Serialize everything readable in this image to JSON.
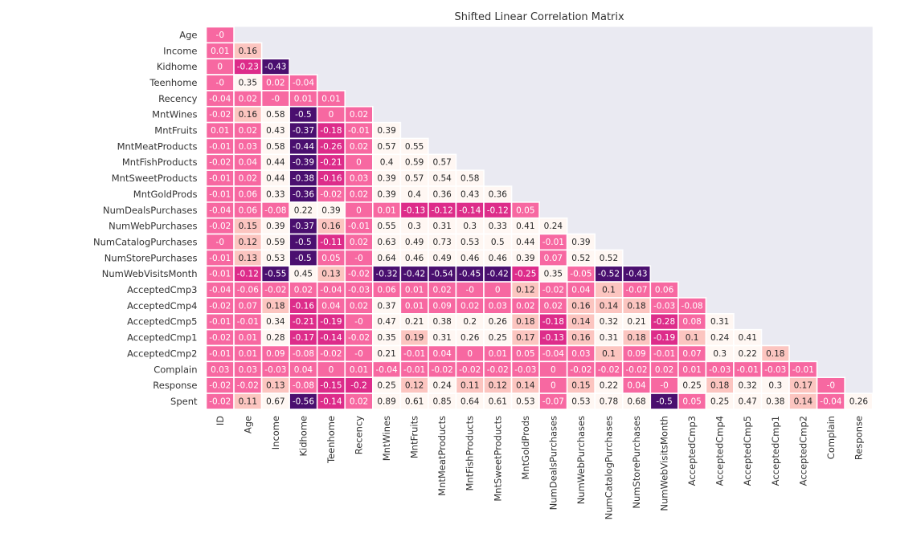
{
  "chart_data": {
    "type": "heatmap",
    "title": "Shifted Linear Correlation Matrix",
    "row_labels": [
      "Age",
      "Income",
      "Kidhome",
      "Teenhome",
      "Recency",
      "MntWines",
      "MntFruits",
      "MntMeatProducts",
      "MntFishProducts",
      "MntSweetProducts",
      "MntGoldProds",
      "NumDealsPurchases",
      "NumWebPurchases",
      "NumCatalogPurchases",
      "NumStorePurchases",
      "NumWebVisitsMonth",
      "AcceptedCmp3",
      "AcceptedCmp4",
      "AcceptedCmp5",
      "AcceptedCmp1",
      "AcceptedCmp2",
      "Complain",
      "Response",
      "Spent"
    ],
    "col_labels": [
      "ID",
      "Age",
      "Income",
      "Kidhome",
      "Teenhome",
      "Recency",
      "MntWines",
      "MntFruits",
      "MntMeatProducts",
      "MntFishProducts",
      "MntSweetProducts",
      "MntGoldProds",
      "NumDealsPurchases",
      "NumWebPurchases",
      "NumCatalogPurchases",
      "NumStorePurchases",
      "NumWebVisitsMonth",
      "AcceptedCmp3",
      "AcceptedCmp4",
      "AcceptedCmp5",
      "AcceptedCmp1",
      "AcceptedCmp2",
      "Complain",
      "Response"
    ],
    "display": [
      [
        "-0"
      ],
      [
        "0.01",
        "0.16"
      ],
      [
        "0",
        "-0.23",
        "-0.43"
      ],
      [
        "-0",
        "0.35",
        "0.02",
        "-0.04"
      ],
      [
        "-0.04",
        "0.02",
        "-0",
        "0.01",
        "0.01"
      ],
      [
        "-0.02",
        "0.16",
        "0.58",
        "-0.5",
        "0",
        "0.02"
      ],
      [
        "0.01",
        "0.02",
        "0.43",
        "-0.37",
        "-0.18",
        "-0.01",
        "0.39"
      ],
      [
        "-0.01",
        "0.03",
        "0.58",
        "-0.44",
        "-0.26",
        "0.02",
        "0.57",
        "0.55"
      ],
      [
        "-0.02",
        "0.04",
        "0.44",
        "-0.39",
        "-0.21",
        "0",
        "0.4",
        "0.59",
        "0.57"
      ],
      [
        "-0.01",
        "0.02",
        "0.44",
        "-0.38",
        "-0.16",
        "0.03",
        "0.39",
        "0.57",
        "0.54",
        "0.58"
      ],
      [
        "-0.01",
        "0.06",
        "0.33",
        "-0.36",
        "-0.02",
        "0.02",
        "0.39",
        "0.4",
        "0.36",
        "0.43",
        "0.36"
      ],
      [
        "-0.04",
        "0.06",
        "-0.08",
        "0.22",
        "0.39",
        "0",
        "0.01",
        "-0.13",
        "-0.12",
        "-0.14",
        "-0.12",
        "0.05"
      ],
      [
        "-0.02",
        "0.15",
        "0.39",
        "-0.37",
        "0.16",
        "-0.01",
        "0.55",
        "0.3",
        "0.31",
        "0.3",
        "0.33",
        "0.41",
        "0.24"
      ],
      [
        "-0",
        "0.12",
        "0.59",
        "-0.5",
        "-0.11",
        "0.02",
        "0.63",
        "0.49",
        "0.73",
        "0.53",
        "0.5",
        "0.44",
        "-0.01",
        "0.39"
      ],
      [
        "-0.01",
        "0.13",
        "0.53",
        "-0.5",
        "0.05",
        "-0",
        "0.64",
        "0.46",
        "0.49",
        "0.46",
        "0.46",
        "0.39",
        "0.07",
        "0.52",
        "0.52"
      ],
      [
        "-0.01",
        "-0.12",
        "-0.55",
        "0.45",
        "0.13",
        "-0.02",
        "-0.32",
        "-0.42",
        "-0.54",
        "-0.45",
        "-0.42",
        "-0.25",
        "0.35",
        "-0.05",
        "-0.52",
        "-0.43"
      ],
      [
        "-0.04",
        "-0.06",
        "-0.02",
        "0.02",
        "-0.04",
        "-0.03",
        "0.06",
        "0.01",
        "0.02",
        "-0",
        "0",
        "0.12",
        "-0.02",
        "0.04",
        "0.1",
        "-0.07",
        "0.06"
      ],
      [
        "-0.02",
        "0.07",
        "0.18",
        "-0.16",
        "0.04",
        "0.02",
        "0.37",
        "0.01",
        "0.09",
        "0.02",
        "0.03",
        "0.02",
        "0.02",
        "0.16",
        "0.14",
        "0.18",
        "-0.03",
        "-0.08"
      ],
      [
        "-0.01",
        "-0.01",
        "0.34",
        "-0.21",
        "-0.19",
        "-0",
        "0.47",
        "0.21",
        "0.38",
        "0.2",
        "0.26",
        "0.18",
        "-0.18",
        "0.14",
        "0.32",
        "0.21",
        "-0.28",
        "0.08",
        "0.31"
      ],
      [
        "-0.02",
        "0.01",
        "0.28",
        "-0.17",
        "-0.14",
        "-0.02",
        "0.35",
        "0.19",
        "0.31",
        "0.26",
        "0.25",
        "0.17",
        "-0.13",
        "0.16",
        "0.31",
        "0.18",
        "-0.19",
        "0.1",
        "0.24",
        "0.41"
      ],
      [
        "-0.01",
        "0.01",
        "0.09",
        "-0.08",
        "-0.02",
        "-0",
        "0.21",
        "-0.01",
        "0.04",
        "0",
        "0.01",
        "0.05",
        "-0.04",
        "0.03",
        "0.1",
        "0.09",
        "-0.01",
        "0.07",
        "0.3",
        "0.22",
        "0.18"
      ],
      [
        "0.03",
        "0.03",
        "-0.03",
        "0.04",
        "0",
        "0.01",
        "-0.04",
        "-0.01",
        "-0.02",
        "-0.02",
        "-0.02",
        "-0.03",
        "0",
        "-0.02",
        "-0.02",
        "-0.02",
        "0.02",
        "0.01",
        "-0.03",
        "-0.01",
        "-0.03",
        "-0.01"
      ],
      [
        "-0.02",
        "-0.02",
        "0.13",
        "-0.08",
        "-0.15",
        "-0.2",
        "0.25",
        "0.12",
        "0.24",
        "0.11",
        "0.12",
        "0.14",
        "0",
        "0.15",
        "0.22",
        "0.04",
        "-0",
        "0.25",
        "0.18",
        "0.32",
        "0.3",
        "0.17",
        "-0"
      ],
      [
        "-0.02",
        "0.11",
        "0.67",
        "-0.56",
        "-0.14",
        "0.02",
        "0.89",
        "0.61",
        "0.85",
        "0.64",
        "0.61",
        "0.53",
        "-0.07",
        "0.53",
        "0.78",
        "0.68",
        "-0.5",
        "0.05",
        "0.25",
        "0.47",
        "0.38",
        "0.14",
        "-0.04",
        "0.26"
      ]
    ],
    "colors": {
      "background": "#eaeaf2",
      "purple_dark": "#4a0f6f",
      "magenta": "#dd2c8a",
      "pink": "#f768a1",
      "pink_light": "#fcc5c0",
      "cream": "#fff7f3",
      "text_light": "#ffffff",
      "text_dark": "#262626"
    }
  }
}
